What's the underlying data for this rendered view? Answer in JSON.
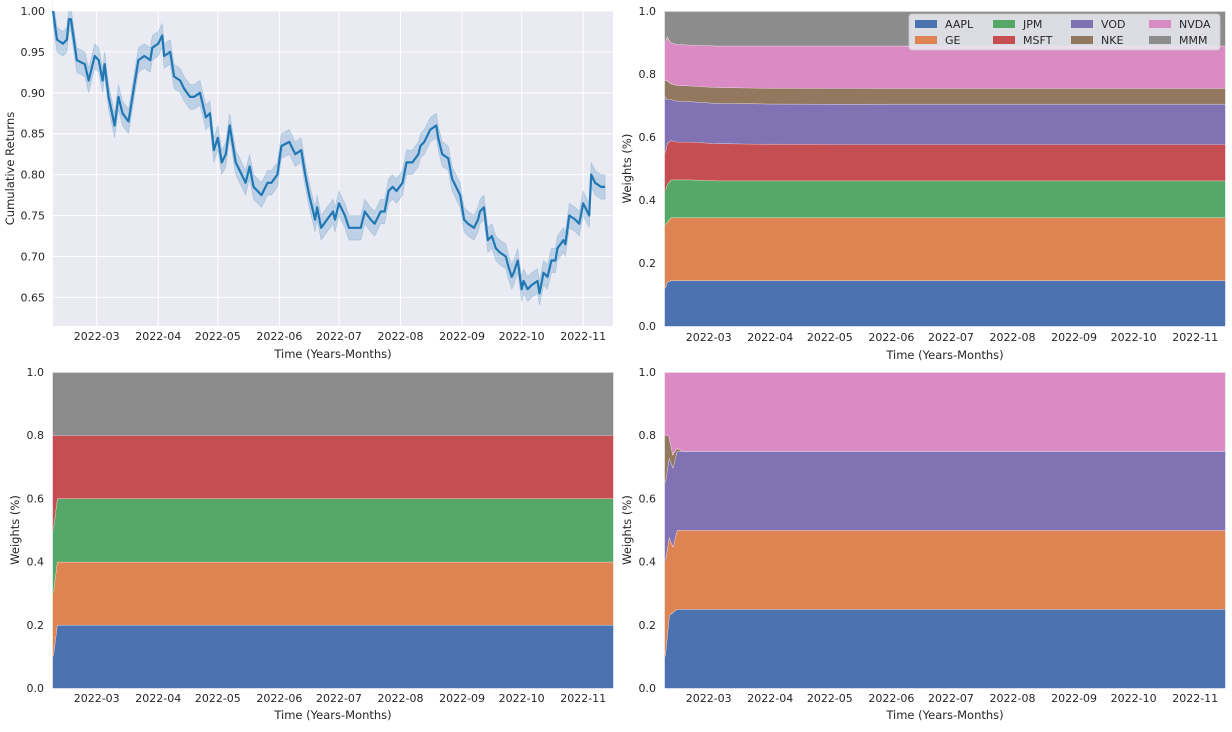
{
  "chart_data": [
    {
      "type": "line",
      "panel": "top-left",
      "xlabel": "Time (Years-Months)",
      "ylabel": "Cumulative Returns",
      "x_ticks": [
        "2022-03",
        "2022-04",
        "2022-05",
        "2022-06",
        "2022-07",
        "2022-08",
        "2022-09",
        "2022-10",
        "2022-11"
      ],
      "y_ticks": [
        "0.65",
        "0.70",
        "0.75",
        "0.80",
        "0.85",
        "0.90",
        "0.95",
        "1.00"
      ],
      "ylim": [
        0.615,
        1.0
      ],
      "xlim": [
        "2022-02-07",
        "2022-11-16"
      ],
      "grid": true,
      "band_width": 0.015,
      "series": [
        {
          "color": "#1f77b4",
          "points": [
            [
              "2022-02-07",
              1.0
            ],
            [
              "2022-02-09",
              0.965
            ],
            [
              "2022-02-12",
              0.96
            ],
            [
              "2022-02-14",
              0.965
            ],
            [
              "2022-02-15",
              0.99
            ],
            [
              "2022-02-16",
              0.99
            ],
            [
              "2022-02-19",
              0.94
            ],
            [
              "2022-02-23",
              0.935
            ],
            [
              "2022-02-25",
              0.915
            ],
            [
              "2022-02-28",
              0.945
            ],
            [
              "2022-03-02",
              0.94
            ],
            [
              "2022-03-04",
              0.915
            ],
            [
              "2022-03-05",
              0.935
            ],
            [
              "2022-03-07",
              0.895
            ],
            [
              "2022-03-10",
              0.86
            ],
            [
              "2022-03-12",
              0.895
            ],
            [
              "2022-03-14",
              0.875
            ],
            [
              "2022-03-17",
              0.865
            ],
            [
              "2022-03-20",
              0.91
            ],
            [
              "2022-03-22",
              0.94
            ],
            [
              "2022-03-25",
              0.945
            ],
            [
              "2022-03-28",
              0.94
            ],
            [
              "2022-03-29",
              0.955
            ],
            [
              "2022-04-01",
              0.96
            ],
            [
              "2022-04-03",
              0.97
            ],
            [
              "2022-04-04",
              0.945
            ],
            [
              "2022-04-07",
              0.95
            ],
            [
              "2022-04-09",
              0.92
            ],
            [
              "2022-04-12",
              0.915
            ],
            [
              "2022-04-14",
              0.905
            ],
            [
              "2022-04-17",
              0.895
            ],
            [
              "2022-04-19",
              0.895
            ],
            [
              "2022-04-22",
              0.9
            ],
            [
              "2022-04-25",
              0.87
            ],
            [
              "2022-04-27",
              0.875
            ],
            [
              "2022-04-29",
              0.83
            ],
            [
              "2022-05-01",
              0.845
            ],
            [
              "2022-05-03",
              0.815
            ],
            [
              "2022-05-05",
              0.825
            ],
            [
              "2022-05-07",
              0.86
            ],
            [
              "2022-05-10",
              0.815
            ],
            [
              "2022-05-13",
              0.8
            ],
            [
              "2022-05-15",
              0.79
            ],
            [
              "2022-05-17",
              0.81
            ],
            [
              "2022-05-19",
              0.785
            ],
            [
              "2022-05-23",
              0.775
            ],
            [
              "2022-05-26",
              0.79
            ],
            [
              "2022-05-28",
              0.79
            ],
            [
              "2022-05-31",
              0.8
            ],
            [
              "2022-06-02",
              0.835
            ],
            [
              "2022-06-06",
              0.84
            ],
            [
              "2022-06-09",
              0.825
            ],
            [
              "2022-06-12",
              0.83
            ],
            [
              "2022-06-14",
              0.8
            ],
            [
              "2022-06-16",
              0.775
            ],
            [
              "2022-06-19",
              0.745
            ],
            [
              "2022-06-20",
              0.76
            ],
            [
              "2022-06-22",
              0.735
            ],
            [
              "2022-06-25",
              0.745
            ],
            [
              "2022-06-28",
              0.755
            ],
            [
              "2022-06-29",
              0.745
            ],
            [
              "2022-07-01",
              0.765
            ],
            [
              "2022-07-04",
              0.75
            ],
            [
              "2022-07-06",
              0.735
            ],
            [
              "2022-07-09",
              0.735
            ],
            [
              "2022-07-12",
              0.735
            ],
            [
              "2022-07-14",
              0.755
            ],
            [
              "2022-07-17",
              0.745
            ],
            [
              "2022-07-19",
              0.74
            ],
            [
              "2022-07-22",
              0.755
            ],
            [
              "2022-07-24",
              0.755
            ],
            [
              "2022-07-26",
              0.78
            ],
            [
              "2022-07-28",
              0.785
            ],
            [
              "2022-07-30",
              0.78
            ],
            [
              "2022-08-02",
              0.79
            ],
            [
              "2022-08-04",
              0.815
            ],
            [
              "2022-08-07",
              0.815
            ],
            [
              "2022-08-10",
              0.825
            ],
            [
              "2022-08-11",
              0.835
            ],
            [
              "2022-08-13",
              0.84
            ],
            [
              "2022-08-16",
              0.855
            ],
            [
              "2022-08-19",
              0.86
            ],
            [
              "2022-08-20",
              0.845
            ],
            [
              "2022-08-22",
              0.825
            ],
            [
              "2022-08-25",
              0.82
            ],
            [
              "2022-08-27",
              0.795
            ],
            [
              "2022-08-29",
              0.785
            ],
            [
              "2022-08-31",
              0.775
            ],
            [
              "2022-09-02",
              0.745
            ],
            [
              "2022-09-04",
              0.74
            ],
            [
              "2022-09-07",
              0.735
            ],
            [
              "2022-09-09",
              0.745
            ],
            [
              "2022-09-10",
              0.755
            ],
            [
              "2022-09-12",
              0.76
            ],
            [
              "2022-09-14",
              0.72
            ],
            [
              "2022-09-16",
              0.725
            ],
            [
              "2022-09-18",
              0.71
            ],
            [
              "2022-09-20",
              0.705
            ],
            [
              "2022-09-23",
              0.7
            ],
            [
              "2022-09-24",
              0.69
            ],
            [
              "2022-09-26",
              0.675
            ],
            [
              "2022-09-27",
              0.68
            ],
            [
              "2022-09-29",
              0.695
            ],
            [
              "2022-10-01",
              0.66
            ],
            [
              "2022-10-02",
              0.67
            ],
            [
              "2022-10-04",
              0.66
            ],
            [
              "2022-10-06",
              0.665
            ],
            [
              "2022-10-09",
              0.67
            ],
            [
              "2022-10-10",
              0.655
            ],
            [
              "2022-10-12",
              0.68
            ],
            [
              "2022-10-14",
              0.675
            ],
            [
              "2022-10-16",
              0.695
            ],
            [
              "2022-10-18",
              0.695
            ],
            [
              "2022-10-19",
              0.71
            ],
            [
              "2022-10-22",
              0.72
            ],
            [
              "2022-10-23",
              0.715
            ],
            [
              "2022-10-25",
              0.75
            ],
            [
              "2022-10-28",
              0.745
            ],
            [
              "2022-10-30",
              0.74
            ],
            [
              "2022-11-01",
              0.765
            ],
            [
              "2022-11-04",
              0.75
            ],
            [
              "2022-11-05",
              0.8
            ],
            [
              "2022-11-07",
              0.79
            ],
            [
              "2022-11-10",
              0.785
            ],
            [
              "2022-11-12",
              0.785
            ]
          ]
        }
      ]
    },
    {
      "type": "area",
      "panel": "top-right",
      "xlabel": "Time (Years-Months)",
      "ylabel": "Weights (%)",
      "x_ticks": [
        "2022-03",
        "2022-04",
        "2022-05",
        "2022-06",
        "2022-07",
        "2022-08",
        "2022-09",
        "2022-10",
        "2022-11"
      ],
      "y_ticks": [
        "0.0",
        "0.2",
        "0.4",
        "0.6",
        "0.8",
        "1.0"
      ],
      "ylim": [
        0,
        1
      ],
      "xlim": [
        "2022-02-07",
        "2022-11-16"
      ],
      "legend_position": "top-right",
      "legend": [
        {
          "label": "AAPL",
          "color": "#4c72b0"
        },
        {
          "label": "GE",
          "color": "#dd8452"
        },
        {
          "label": "JPM",
          "color": "#55a868"
        },
        {
          "label": "MSFT",
          "color": "#c44e52"
        },
        {
          "label": "VOD",
          "color": "#8172b3"
        },
        {
          "label": "NKE",
          "color": "#937860"
        },
        {
          "label": "NVDA",
          "color": "#da8bc3"
        },
        {
          "label": "MMM",
          "color": "#8c8c8c"
        }
      ],
      "x": [
        "2022-02-07",
        "2022-02-08",
        "2022-02-10",
        "2022-02-13",
        "2022-02-20",
        "2022-03-05",
        "2022-04-01",
        "2022-06-01",
        "2022-09-01",
        "2022-11-16"
      ],
      "series": [
        {
          "name": "AAPL",
          "color": "#4c72b0",
          "values": [
            0.12,
            0.14,
            0.145,
            0.145,
            0.145,
            0.145,
            0.145,
            0.145,
            0.145,
            0.145
          ]
        },
        {
          "name": "GE",
          "color": "#dd8452",
          "values": [
            0.2,
            0.19,
            0.2,
            0.2,
            0.2,
            0.2,
            0.2,
            0.2,
            0.2,
            0.2
          ]
        },
        {
          "name": "JPM",
          "color": "#55a868",
          "values": [
            0.11,
            0.12,
            0.12,
            0.12,
            0.12,
            0.117,
            0.117,
            0.117,
            0.117,
            0.117
          ]
        },
        {
          "name": "MSFT",
          "color": "#c44e52",
          "values": [
            0.12,
            0.13,
            0.125,
            0.12,
            0.12,
            0.118,
            0.116,
            0.115,
            0.115,
            0.115
          ]
        },
        {
          "name": "VOD",
          "color": "#8172b3",
          "values": [
            0.18,
            0.14,
            0.13,
            0.13,
            0.128,
            0.128,
            0.128,
            0.128,
            0.128,
            0.128
          ]
        },
        {
          "name": "NKE",
          "color": "#937860",
          "values": [
            0.05,
            0.06,
            0.05,
            0.05,
            0.05,
            0.05,
            0.05,
            0.05,
            0.05,
            0.05
          ]
        },
        {
          "name": "NVDA",
          "color": "#da8bc3",
          "values": [
            0.12,
            0.14,
            0.13,
            0.13,
            0.13,
            0.132,
            0.134,
            0.135,
            0.135,
            0.135
          ]
        },
        {
          "name": "MMM",
          "color": "#8c8c8c",
          "values": [
            0.1,
            0.08,
            0.1,
            0.105,
            0.107,
            0.11,
            0.11,
            0.11,
            0.11,
            0.11
          ]
        }
      ]
    },
    {
      "type": "area",
      "panel": "bottom-left",
      "xlabel": "Time (Years-Months)",
      "ylabel": "Weights (%)",
      "x_ticks": [
        "2022-03",
        "2022-04",
        "2022-05",
        "2022-06",
        "2022-07",
        "2022-08",
        "2022-09",
        "2022-10",
        "2022-11"
      ],
      "y_ticks": [
        "0.0",
        "0.2",
        "0.4",
        "0.6",
        "0.8",
        "1.0"
      ],
      "ylim": [
        0,
        1
      ],
      "xlim": [
        "2022-02-07",
        "2022-11-16"
      ],
      "x": [
        "2022-02-07",
        "2022-02-09",
        "2022-02-12",
        "2022-11-16"
      ],
      "series": [
        {
          "name": "AAPL",
          "color": "#4c72b0",
          "values": [
            0.1,
            0.2,
            0.2,
            0.2
          ]
        },
        {
          "name": "GE",
          "color": "#dd8452",
          "values": [
            0.2,
            0.2,
            0.2,
            0.2
          ]
        },
        {
          "name": "JPM",
          "color": "#55a868",
          "values": [
            0.2,
            0.2,
            0.2,
            0.2
          ]
        },
        {
          "name": "MSFT",
          "color": "#c44e52",
          "values": [
            0.3,
            0.2,
            0.2,
            0.2
          ]
        },
        {
          "name": "MMM",
          "color": "#8c8c8c",
          "values": [
            0.2,
            0.2,
            0.2,
            0.2
          ]
        }
      ]
    },
    {
      "type": "area",
      "panel": "bottom-right",
      "xlabel": "Time (Years-Months)",
      "ylabel": "Weights (%)",
      "x_ticks": [
        "2022-03",
        "2022-04",
        "2022-05",
        "2022-06",
        "2022-07",
        "2022-08",
        "2022-09",
        "2022-10",
        "2022-11"
      ],
      "y_ticks": [
        "0.0",
        "0.2",
        "0.4",
        "0.6",
        "0.8",
        "1.0"
      ],
      "ylim": [
        0,
        1
      ],
      "xlim": [
        "2022-02-07",
        "2022-11-16"
      ],
      "x": [
        "2022-02-07",
        "2022-02-09",
        "2022-02-11",
        "2022-02-13",
        "2022-02-16",
        "2022-11-16"
      ],
      "series": [
        {
          "name": "AAPL",
          "color": "#4c72b0",
          "values": [
            0.1,
            0.23,
            0.24,
            0.25,
            0.25,
            0.25
          ]
        },
        {
          "name": "GE",
          "color": "#dd8452",
          "values": [
            0.3,
            0.25,
            0.21,
            0.25,
            0.25,
            0.25
          ]
        },
        {
          "name": "VOD",
          "color": "#8172b3",
          "values": [
            0.25,
            0.25,
            0.25,
            0.25,
            0.25,
            0.25
          ]
        },
        {
          "name": "NKE",
          "color": "#937860",
          "values": [
            0.15,
            0.07,
            0.04,
            0.01,
            0.0,
            0.0
          ]
        },
        {
          "name": "NVDA",
          "color": "#da8bc3",
          "values": [
            0.2,
            0.2,
            0.26,
            0.24,
            0.25,
            0.25
          ]
        }
      ]
    }
  ]
}
